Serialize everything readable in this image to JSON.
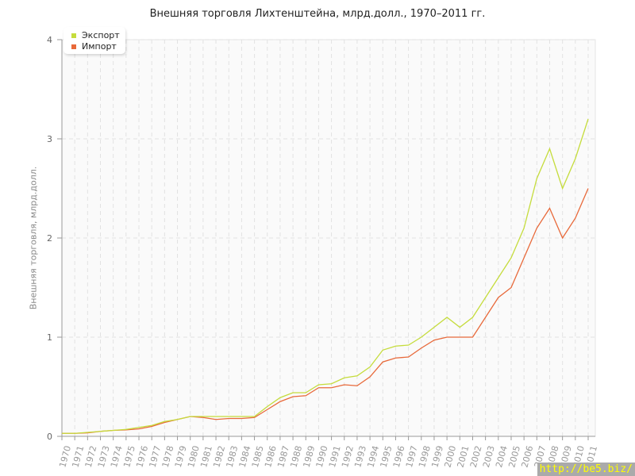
{
  "chart_data": {
    "type": "line",
    "title": "Внешняя торговля Лихтенштейна, млрд.долл., 1970–2011 гг.",
    "xlabel": "",
    "ylabel": "Внешняя торговля, млрд.долл.",
    "ylim": [
      0,
      4
    ],
    "yticks": [
      "0",
      "1",
      "2",
      "3",
      "4"
    ],
    "grid": true,
    "legend_position": "top-left",
    "x": [
      "1970",
      "1971",
      "1972",
      "1973",
      "1974",
      "1975",
      "1976",
      "1977",
      "1978",
      "1979",
      "1980",
      "1981",
      "1982",
      "1983",
      "1984",
      "1985",
      "1986",
      "1987",
      "1988",
      "1989",
      "1990",
      "1991",
      "1992",
      "1993",
      "1994",
      "1995",
      "1996",
      "1997",
      "1998",
      "1999",
      "2000",
      "2001",
      "2002",
      "2003",
      "2004",
      "2005",
      "2006",
      "2007",
      "2008",
      "2009",
      "2010",
      "2011"
    ],
    "series": [
      {
        "name": "Экспорт",
        "color": "#c5dc3c",
        "values": [
          0.03,
          0.03,
          0.04,
          0.05,
          0.06,
          0.07,
          0.09,
          0.11,
          0.15,
          0.17,
          0.2,
          0.2,
          0.2,
          0.2,
          0.2,
          0.2,
          0.3,
          0.39,
          0.44,
          0.44,
          0.52,
          0.53,
          0.59,
          0.61,
          0.7,
          0.87,
          0.91,
          0.92,
          1.0,
          1.1,
          1.2,
          1.1,
          1.2,
          1.4,
          1.6,
          1.8,
          2.1,
          2.6,
          2.9,
          2.5,
          2.8,
          3.2
        ]
      },
      {
        "name": "Импорт",
        "color": "#e8693a",
        "values": [
          0.03,
          0.03,
          0.035,
          0.05,
          0.06,
          0.065,
          0.075,
          0.1,
          0.14,
          0.17,
          0.2,
          0.19,
          0.17,
          0.18,
          0.18,
          0.19,
          0.27,
          0.35,
          0.4,
          0.41,
          0.49,
          0.49,
          0.52,
          0.51,
          0.6,
          0.75,
          0.79,
          0.8,
          0.89,
          0.97,
          1.0,
          1.0,
          1.0,
          1.2,
          1.4,
          1.5,
          1.8,
          2.1,
          2.3,
          2.0,
          2.2,
          2.5
        ]
      }
    ]
  },
  "watermark": "http://be5.biz/"
}
